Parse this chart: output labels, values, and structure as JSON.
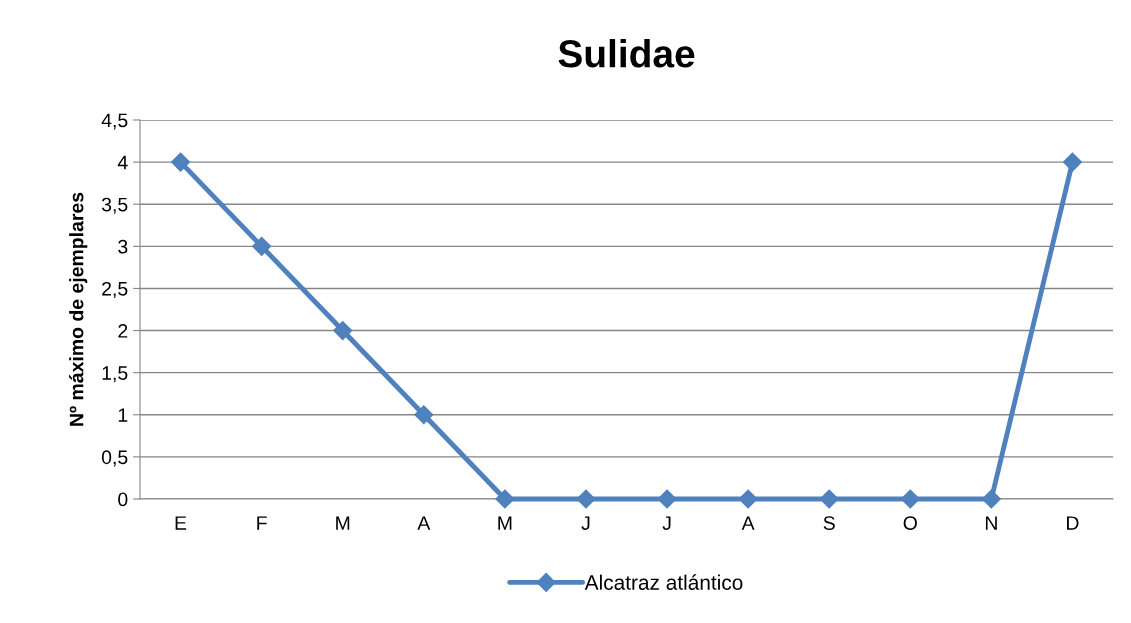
{
  "chart_data": {
    "type": "line",
    "title": "Sulidae",
    "ylabel": "Nº máximo de ejemplares",
    "categories": [
      "E",
      "F",
      "M",
      "A",
      "M",
      "J",
      "J",
      "A",
      "S",
      "O",
      "N",
      "D"
    ],
    "series": [
      {
        "name": "Alcatraz atlántico",
        "color": "#4f81bd",
        "values": [
          4,
          3,
          2,
          1,
          0,
          0,
          0,
          0,
          0,
          0,
          0,
          4
        ]
      }
    ],
    "ylim": [
      0,
      4.5
    ],
    "yticks": [
      0,
      {
        "value": 0.5,
        "label": "0,5"
      },
      1,
      {
        "value": 1.5,
        "label": "1,5"
      },
      2,
      {
        "value": 2.5,
        "label": "2,5"
      },
      3,
      {
        "value": 3.5,
        "label": "3,5"
      },
      4,
      {
        "value": 4.5,
        "label": "4,5"
      }
    ],
    "grid": "y",
    "legend": "bottom",
    "marker": "diamond",
    "line_style": "solid"
  }
}
